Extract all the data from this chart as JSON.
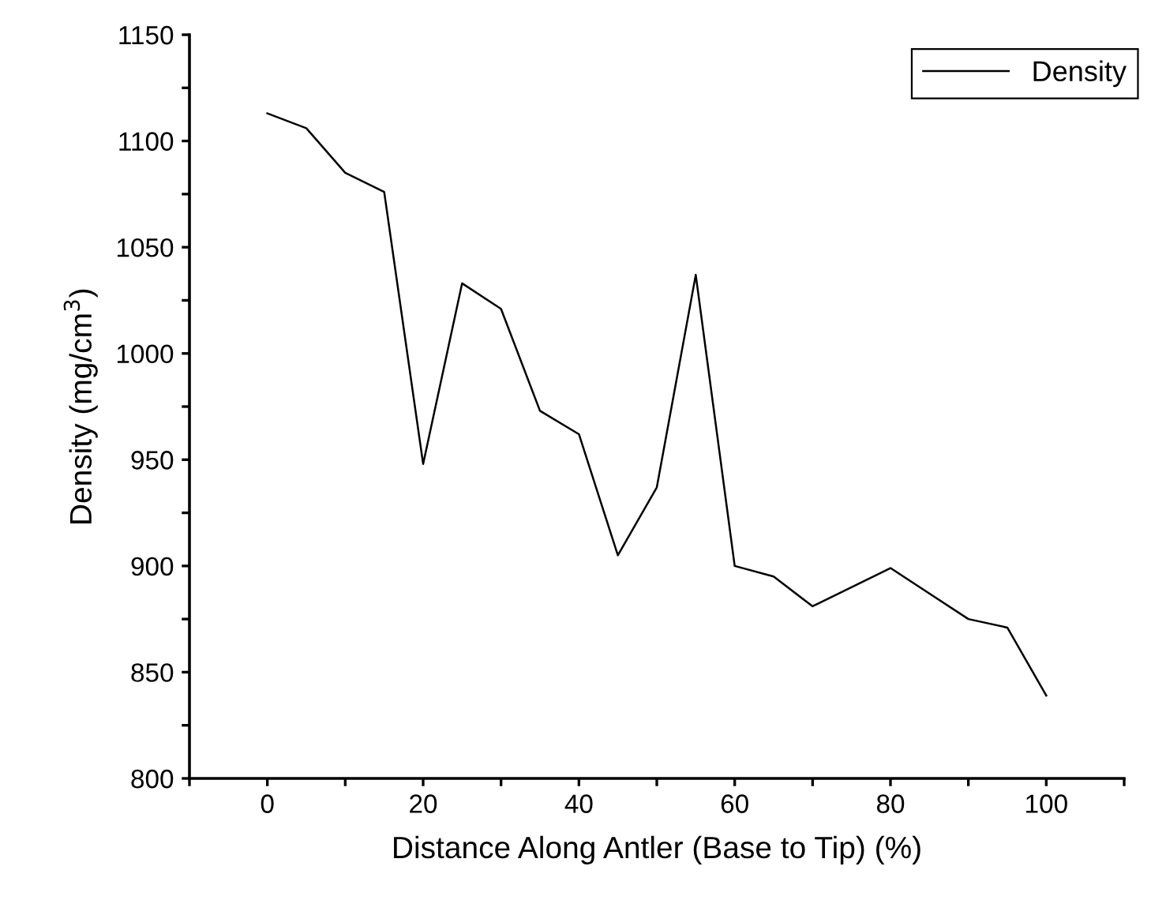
{
  "chart_data": {
    "type": "line",
    "xlabel": "Distance Along Antler (Base to Tip) (%)",
    "ylabel": "Density (mg/cm$^{3}$)",
    "x": [
      0,
      5,
      10,
      15,
      20,
      25,
      30,
      35,
      40,
      45,
      50,
      55,
      60,
      65,
      70,
      80,
      90,
      95,
      100
    ],
    "series": [
      {
        "name": "Density",
        "color": "#000000",
        "values": [
          1113,
          1106,
          1085,
          1076,
          948,
          1033,
          1021,
          973,
          962,
          905,
          937,
          1037,
          900,
          895,
          881,
          899,
          875,
          871,
          839
        ]
      }
    ],
    "xlim": [
      -10,
      110
    ],
    "xticks": [
      {
        "value": -10,
        "label": null
      },
      0,
      {
        "value": 10,
        "label": null
      },
      20,
      {
        "value": 30,
        "label": null
      },
      40,
      {
        "value": 50,
        "label": null
      },
      60,
      {
        "value": 70,
        "label": null
      },
      80,
      {
        "value": 90,
        "label": null
      },
      100,
      {
        "value": 110,
        "label": null
      }
    ],
    "ylim": [
      800,
      1150
    ],
    "yticks": [
      800,
      {
        "value": 825,
        "label": null
      },
      850,
      {
        "value": 875,
        "label": null
      },
      900,
      {
        "value": 925,
        "label": null
      },
      950,
      {
        "value": 975,
        "label": null
      },
      1000,
      {
        "value": 1025,
        "label": null
      },
      1050,
      {
        "value": 1075,
        "label": null
      },
      1100,
      {
        "value": 1125,
        "label": null
      },
      1150
    ],
    "grid": false,
    "legend": "top right",
    "marker": "none",
    "line_style": "solid"
  }
}
